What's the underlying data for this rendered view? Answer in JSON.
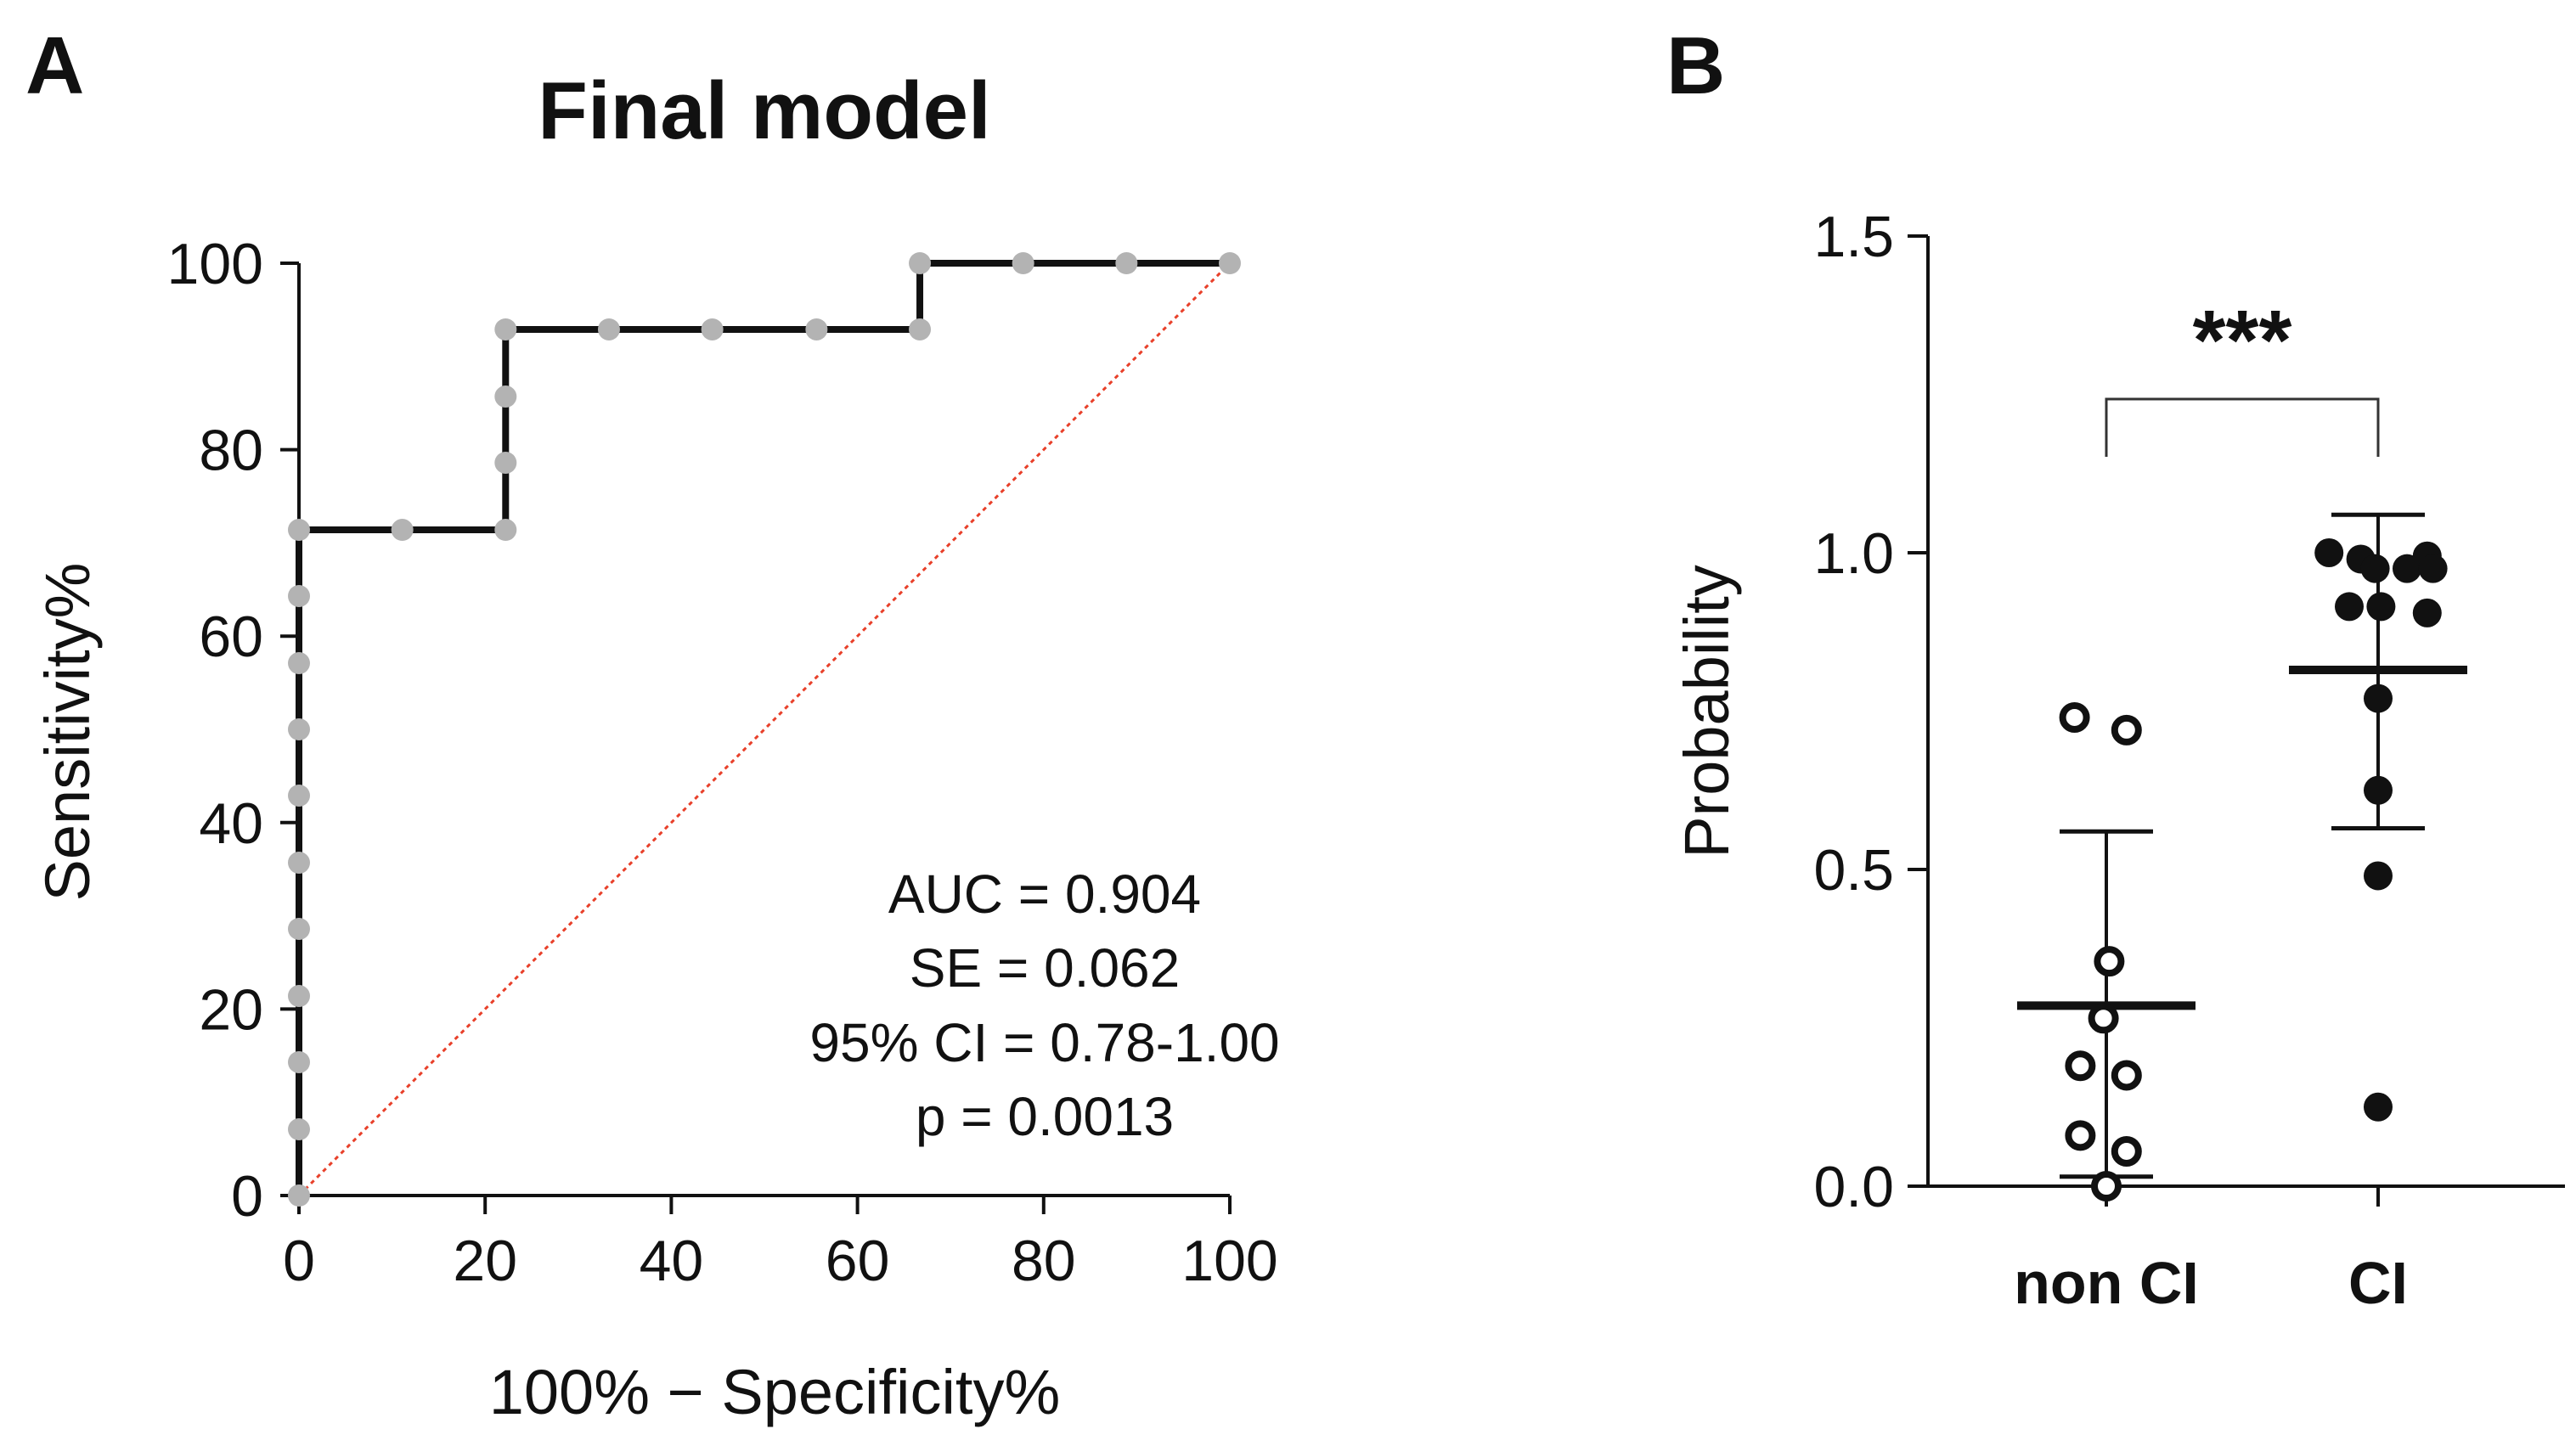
{
  "chart_data": [
    {
      "panel": "A",
      "type": "line",
      "subtype": "roc-curve",
      "title": "Final model",
      "xlabel": "100% − Specificity%",
      "ylabel": "Sensitivity%",
      "xlim": [
        0,
        100
      ],
      "ylim": [
        0,
        100
      ],
      "xticks": [
        "0",
        "20",
        "40",
        "60",
        "80",
        "100"
      ],
      "yticks": [
        "0",
        "20",
        "40",
        "60",
        "80",
        "100"
      ],
      "series": [
        {
          "name": "ROC curve",
          "color": "#111111",
          "x": [
            0,
            0,
            22.2,
            22.2,
            66.7,
            66.7,
            100
          ],
          "y": [
            0,
            71.4,
            71.4,
            92.9,
            92.9,
            100,
            100
          ]
        },
        {
          "name": "Reference line",
          "color": "#e8402a",
          "style": "dotted",
          "x": [
            0,
            100
          ],
          "y": [
            0,
            100
          ]
        }
      ],
      "points": {
        "color": "#b3b3b3",
        "x": [
          0,
          0,
          0,
          0,
          0,
          0,
          0,
          0,
          0,
          0,
          0,
          11.1,
          22.2,
          22.2,
          22.2,
          22.2,
          33.3,
          44.4,
          55.6,
          66.7,
          66.7,
          77.8,
          88.9,
          100
        ],
        "y": [
          0,
          7.1,
          14.3,
          21.4,
          28.6,
          35.7,
          42.9,
          50,
          57.1,
          64.3,
          71.4,
          71.4,
          71.4,
          78.6,
          85.7,
          92.9,
          92.9,
          92.9,
          92.9,
          92.9,
          100,
          100,
          100,
          100
        ]
      },
      "annotations": [
        "AUC = 0.904",
        "SE = 0.062",
        "95% CI = 0.78-1.00",
        "p = 0.0013"
      ]
    },
    {
      "panel": "B",
      "type": "scatter",
      "subtype": "dot-plot-mean-sd",
      "ylabel": "Probability",
      "ylim": [
        0,
        1.5
      ],
      "yticks": [
        "0.0",
        "0.5",
        "1.0",
        "1.5"
      ],
      "categories": [
        "non CI",
        "CI"
      ],
      "significance": "***",
      "groups": [
        {
          "name": "non CI",
          "marker": "open",
          "mean": 0.285,
          "sd_low": 0.015,
          "sd_high": 0.56,
          "values": [
            0.74,
            0.72,
            0.355,
            0.265,
            0.19,
            0.175,
            0.08,
            0.055,
            0.0
          ],
          "jitter": [
            -0.55,
            0.35,
            0.05,
            -0.05,
            -0.45,
            0.35,
            -0.45,
            0.35,
            0.0
          ]
        },
        {
          "name": "CI",
          "marker": "filled",
          "mean": 0.815,
          "sd_low": 0.565,
          "sd_high": 1.06,
          "values": [
            1.0,
            0.995,
            0.99,
            0.975,
            0.975,
            0.975,
            0.915,
            0.915,
            0.905,
            0.77,
            0.625,
            0.49,
            0.125
          ],
          "jitter": [
            -0.85,
            0.85,
            -0.3,
            -0.05,
            0.5,
            0.95,
            -0.5,
            0.05,
            0.85,
            0.0,
            0.0,
            0.0,
            0.0
          ]
        }
      ]
    }
  ]
}
